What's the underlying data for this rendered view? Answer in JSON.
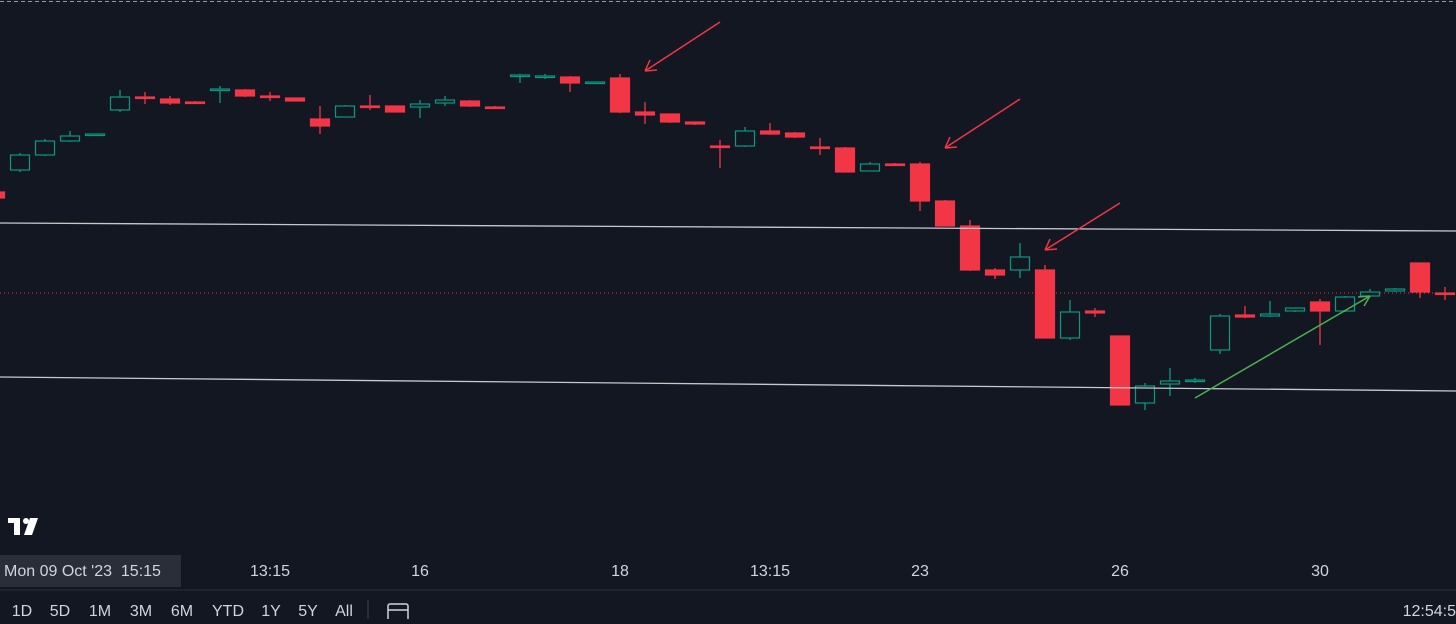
{
  "chart_data": {
    "type": "candlestick",
    "categories": [
      null,
      null,
      null,
      null,
      null,
      null,
      null,
      null,
      null,
      null,
      null,
      "13:15",
      null,
      null,
      null,
      null,
      null,
      "16",
      null,
      null,
      null,
      null,
      null,
      null,
      null,
      "18",
      null,
      null,
      null,
      null,
      null,
      "13:15",
      null,
      null,
      null,
      null,
      null,
      "23",
      null,
      null,
      null,
      null,
      null,
      null,
      null,
      "26",
      null,
      null,
      null,
      null,
      null,
      null,
      null,
      "30",
      null,
      null,
      null,
      null,
      null
    ],
    "open": [
      30.8,
      33.0,
      34.5,
      35.9,
      36.5,
      39.0,
      40.3,
      40.1,
      39.8,
      41.0,
      41.0,
      40.4,
      40.2,
      38.1,
      38.3,
      39.4,
      39.4,
      39.3,
      39.7,
      39.9,
      39.3,
      42.4,
      42.3,
      42.3,
      41.7,
      42.2,
      38.8,
      38.6,
      37.8,
      35.4,
      35.4,
      36.9,
      36.7,
      35.3,
      35.2,
      32.9,
      33.6,
      33.6,
      29.9,
      27.4,
      23.0,
      23.0,
      23.0,
      16.2,
      18.9,
      16.4,
      9.7,
      11.6,
      11.9,
      15.0,
      18.5,
      18.4,
      18.9,
      19.8,
      18.9,
      20.4,
      20.9,
      23.7,
      20.7
    ],
    "high": [
      30.8,
      34.7,
      36.1,
      36.9,
      36.6,
      41.0,
      40.8,
      40.4,
      39.9,
      41.4,
      41.1,
      40.8,
      40.2,
      39.4,
      39.5,
      40.5,
      39.4,
      40.0,
      40.4,
      40.0,
      39.4,
      42.6,
      42.6,
      42.4,
      41.8,
      42.6,
      39.8,
      38.6,
      37.8,
      36.0,
      37.3,
      37.7,
      36.8,
      36.2,
      35.3,
      33.8,
      33.7,
      33.8,
      30.0,
      28.0,
      23.2,
      25.7,
      23.5,
      20.0,
      19.2,
      16.4,
      11.7,
      13.2,
      12.2,
      18.6,
      19.4,
      19.9,
      19.2,
      20.1,
      20.4,
      21.1,
      21.2,
      23.7,
      21.3
    ],
    "low": [
      30.2,
      32.8,
      34.4,
      35.8,
      36.5,
      38.8,
      39.6,
      39.5,
      39.6,
      39.7,
      40.3,
      39.9,
      39.9,
      36.6,
      38.3,
      39.0,
      38.8,
      38.2,
      39.4,
      39.3,
      39.1,
      41.7,
      42.1,
      40.8,
      41.6,
      38.7,
      37.6,
      37.7,
      37.5,
      33.2,
      35.3,
      36.5,
      36.2,
      34.5,
      32.8,
      32.9,
      33.4,
      28.9,
      27.4,
      22.9,
      22.1,
      22.2,
      16.2,
      16.0,
      18.3,
      9.5,
      9.0,
      10.4,
      11.7,
      14.6,
      18.2,
      18.3,
      18.8,
      15.5,
      18.8,
      20.3,
      20.8,
      20.2,
      20.0
    ],
    "close": [
      30.2,
      34.5,
      35.9,
      36.4,
      36.6,
      40.3,
      40.2,
      39.7,
      39.7,
      41.1,
      40.4,
      40.3,
      39.9,
      37.4,
      39.4,
      39.3,
      38.8,
      39.6,
      40.0,
      39.4,
      39.2,
      42.5,
      42.4,
      41.7,
      41.8,
      38.8,
      38.5,
      37.8,
      37.6,
      35.3,
      36.9,
      36.6,
      36.3,
      35.2,
      32.8,
      33.6,
      33.5,
      29.9,
      27.4,
      23.0,
      22.5,
      24.3,
      16.2,
      18.8,
      18.7,
      9.5,
      11.4,
      11.9,
      12.0,
      18.4,
      18.3,
      18.6,
      19.2,
      18.9,
      20.3,
      20.8,
      21.1,
      20.8,
      20.6
    ],
    "up_color": "#089981",
    "down_color": "#f23645",
    "ylim": [
      0,
      50
    ],
    "price_line": 20.7,
    "crosshair_label": "Mon 09 Oct '23  15:15"
  },
  "toolbar": {
    "ranges": [
      "1D",
      "5D",
      "1M",
      "3M",
      "6M",
      "YTD",
      "1Y",
      "5Y",
      "All"
    ],
    "clock": "12:54:5"
  }
}
